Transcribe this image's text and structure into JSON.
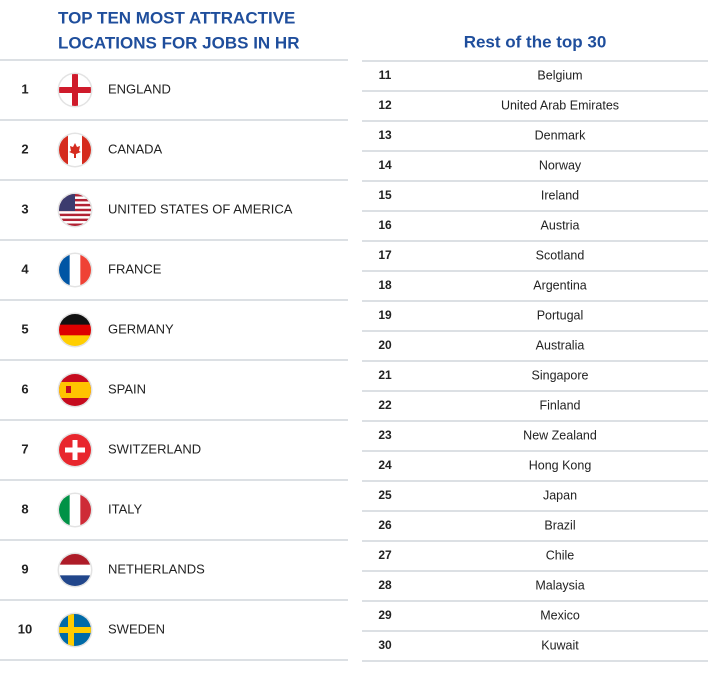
{
  "left": {
    "title": [
      "TOP TEN MOST ATTRACTIVE",
      "LOCATIONS FOR JOBS IN HR"
    ],
    "rows": [
      {
        "rank": 1,
        "country": "ENGLAND"
      },
      {
        "rank": 2,
        "country": "CANADA"
      },
      {
        "rank": 3,
        "country": "UNITED STATES OF AMERICA"
      },
      {
        "rank": 4,
        "country": "FRANCE"
      },
      {
        "rank": 5,
        "country": "GERMANY"
      },
      {
        "rank": 6,
        "country": "SPAIN"
      },
      {
        "rank": 7,
        "country": "SWITZERLAND"
      },
      {
        "rank": 8,
        "country": "ITALY"
      },
      {
        "rank": 9,
        "country": "NETHERLANDS"
      },
      {
        "rank": 10,
        "country": "SWEDEN"
      }
    ]
  },
  "right": {
    "title": "Rest of the top 30",
    "rows": [
      {
        "rank": 11,
        "country": "Belgium"
      },
      {
        "rank": 12,
        "country": "United Arab Emirates"
      },
      {
        "rank": 13,
        "country": "Denmark"
      },
      {
        "rank": 14,
        "country": "Norway"
      },
      {
        "rank": 15,
        "country": "Ireland"
      },
      {
        "rank": 16,
        "country": "Austria"
      },
      {
        "rank": 17,
        "country": "Scotland"
      },
      {
        "rank": 18,
        "country": "Argentina"
      },
      {
        "rank": 19,
        "country": "Portugal"
      },
      {
        "rank": 20,
        "country": "Australia"
      },
      {
        "rank": 21,
        "country": "Singapore"
      },
      {
        "rank": 22,
        "country": "Finland"
      },
      {
        "rank": 23,
        "country": "New Zealand"
      },
      {
        "rank": 24,
        "country": "Hong Kong"
      },
      {
        "rank": 25,
        "country": "Japan"
      },
      {
        "rank": 26,
        "country": "Brazil"
      },
      {
        "rank": 27,
        "country": "Chile"
      },
      {
        "rank": 28,
        "country": "Malaysia"
      },
      {
        "rank": 29,
        "country": "Mexico"
      },
      {
        "rank": 30,
        "country": "Kuwait"
      }
    ]
  }
}
